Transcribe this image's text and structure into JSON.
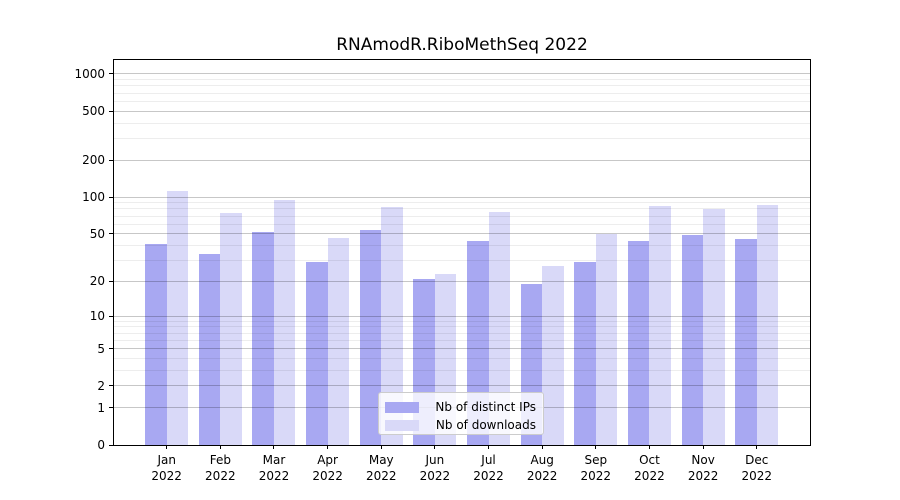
{
  "chart_data": {
    "type": "bar",
    "title": "RNAmodR.RiboMethSeq 2022",
    "categories": [
      "Jan",
      "Feb",
      "Mar",
      "Apr",
      "May",
      "Jun",
      "Jul",
      "Aug",
      "Sep",
      "Oct",
      "Nov",
      "Dec"
    ],
    "year_label": "2022",
    "series": [
      {
        "name": "Nb of distinct IPs",
        "color": "#a8a8f2",
        "values": [
          41,
          34,
          52,
          29,
          54,
          21,
          44,
          19,
          29,
          44,
          49,
          45
        ]
      },
      {
        "name": "Nb of downloads",
        "color": "#d9d9f8",
        "values": [
          113,
          74,
          95,
          46,
          83,
          23,
          76,
          27,
          50,
          85,
          80,
          86
        ]
      }
    ],
    "y_axis": {
      "scale": "log10(v+1)",
      "ticks": [
        0,
        1,
        2,
        5,
        10,
        20,
        50,
        100,
        200,
        500,
        1000
      ],
      "minor_ticks": [
        3,
        4,
        6,
        7,
        8,
        9,
        30,
        40,
        60,
        70,
        80,
        90,
        300,
        400,
        600,
        700,
        800,
        900
      ],
      "range_top": 1297
    },
    "grid": true,
    "legend_position": "lower center-right inside plot",
    "colors": {
      "axis": "#000000",
      "major_grid": "#c7c7c7",
      "minor_grid": "#ededed",
      "background": "#ffffff"
    }
  }
}
